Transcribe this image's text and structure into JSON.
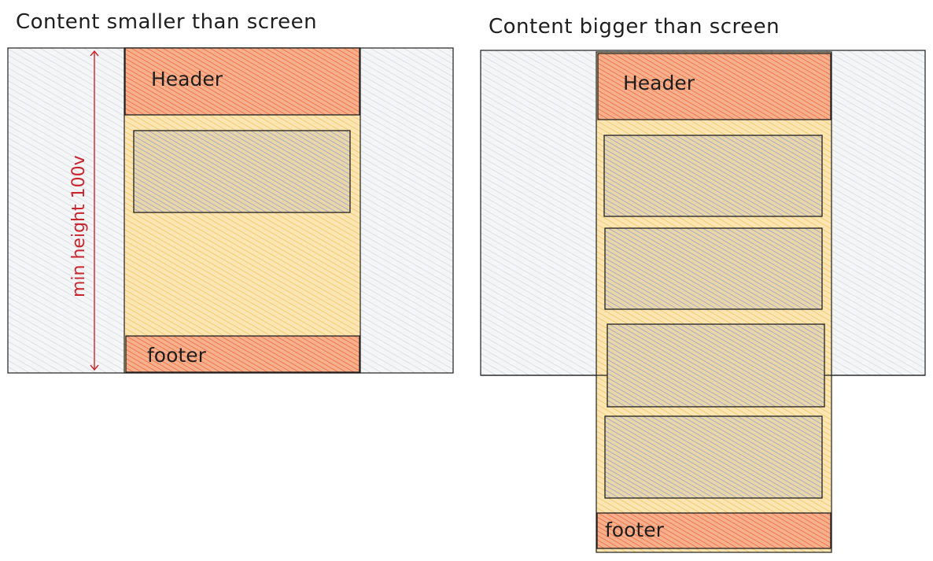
{
  "colors": {
    "screen_fill": "#e9ecef",
    "content_fill": "#ffd379",
    "header_footer_fill": "#ff8a5c",
    "block_fill": "#b3b7d8",
    "stroke": "#1e1e1e",
    "dimension": "#c9252d"
  },
  "left_diagram": {
    "title": "Content smaller than screen",
    "header_label": "Header",
    "footer_label": "footer",
    "dimension_label": "min height 100v"
  },
  "right_diagram": {
    "title": "Content bigger than screen",
    "header_label": "Header",
    "footer_label": "footer"
  }
}
